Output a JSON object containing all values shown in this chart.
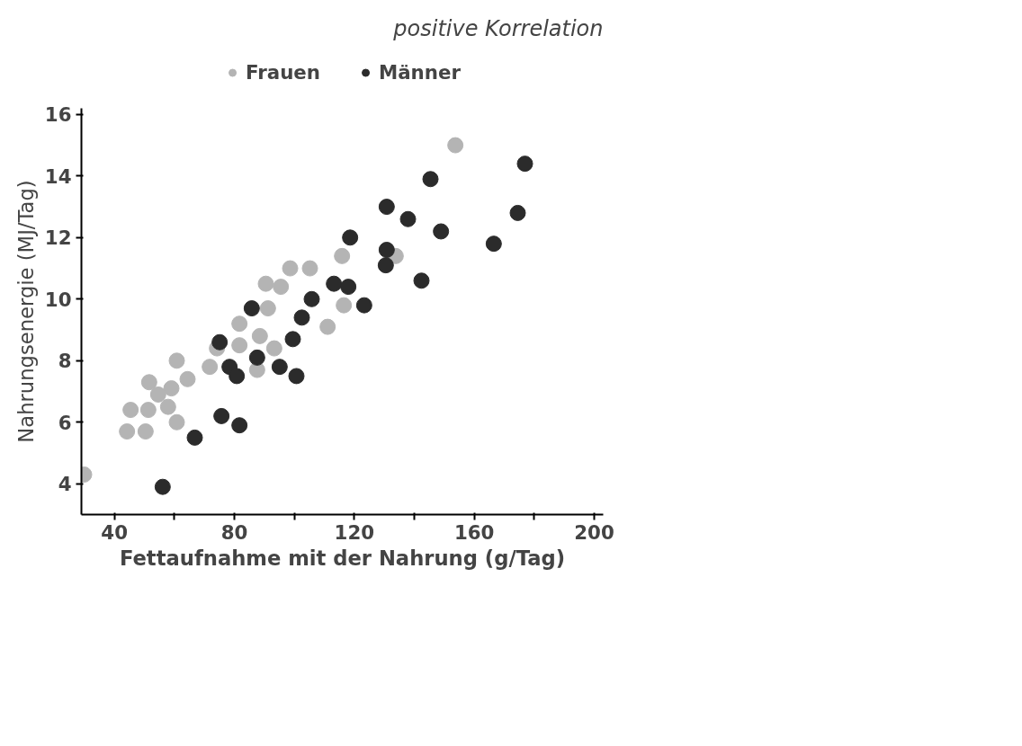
{
  "chart_data": {
    "type": "scatter",
    "xlabel": "Fettaufnahme mit der Nahrung (g/Tag)",
    "ylabel": "Nahrungsenergie (MJ/Tag)",
    "annotations": [
      "positive Korrelation"
    ],
    "xlim": [
      29,
      203
    ],
    "ylim": [
      3,
      16.2
    ],
    "xticks": [
      40,
      {
        "value": 60,
        "label": null
      },
      80,
      {
        "value": 100,
        "label": null
      },
      120,
      {
        "value": 140,
        "label": null
      },
      160,
      {
        "value": 180,
        "label": null
      },
      200
    ],
    "yticks": [
      4,
      6,
      8,
      10,
      12,
      14,
      16
    ],
    "grid": false,
    "legend": "top",
    "marker": "circle",
    "series": [
      {
        "name": "Frauen",
        "color": "#b4b4b4",
        "x": [
          153.7,
          115.9,
          98.6,
          105.2,
          133.8,
          116.5,
          111.1,
          90.5,
          95.5,
          91.2,
          81.7,
          88.5,
          74.2,
          81.7,
          93.3,
          60.8,
          71.8,
          87.6,
          64.4,
          51.6,
          59.0,
          54.6,
          57.9,
          45.4,
          51.3,
          60.8,
          44.2,
          50.4,
          29.9
        ],
        "values": [
          15.0,
          11.4,
          11.0,
          11.0,
          11.4,
          9.8,
          9.1,
          10.5,
          10.4,
          9.7,
          9.2,
          8.8,
          8.4,
          8.5,
          8.4,
          8.0,
          7.8,
          7.7,
          7.4,
          7.3,
          7.1,
          6.9,
          6.5,
          6.4,
          6.4,
          6.0,
          5.7,
          5.7,
          4.3
        ]
      },
      {
        "name": "Männer",
        "color": "#2b2b2b",
        "x": [
          176.9,
          145.4,
          130.8,
          137.9,
          174.5,
          148.9,
          118.6,
          166.5,
          130.8,
          130.5,
          142.4,
          113.2,
          118.0,
          105.8,
          123.3,
          102.5,
          85.8,
          99.5,
          75.1,
          87.6,
          78.4,
          80.8,
          95.1,
          100.7,
          75.7,
          81.7,
          66.8,
          56.1
        ],
        "values": [
          14.4,
          13.9,
          13.0,
          12.6,
          12.8,
          12.2,
          12.0,
          11.8,
          11.6,
          11.1,
          10.6,
          10.5,
          10.4,
          10.0,
          9.8,
          9.4,
          9.7,
          8.7,
          8.6,
          8.1,
          7.8,
          7.5,
          7.8,
          7.5,
          6.2,
          5.9,
          5.5,
          3.9
        ]
      }
    ]
  }
}
